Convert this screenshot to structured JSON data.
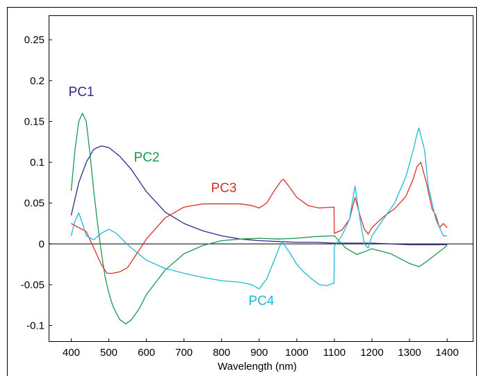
{
  "chart_data": {
    "type": "line",
    "title": "",
    "xlabel": "Wavelength (nm)",
    "ylabel": "",
    "xlim": [
      340,
      1470
    ],
    "ylim": [
      -0.12,
      0.28
    ],
    "x_ticks": [
      400,
      500,
      600,
      700,
      800,
      900,
      1000,
      1100,
      1200,
      1300,
      1400
    ],
    "y_ticks": [
      -0.1,
      -0.05,
      0,
      0.05,
      0.1,
      0.15,
      0.2,
      0.25
    ],
    "x_tick_labels": [
      "400",
      "500",
      "600",
      "700",
      "800",
      "900",
      "1000",
      "1100",
      "1200",
      "1300",
      "1400"
    ],
    "y_tick_labels": [
      "-0.1",
      "-0.05",
      "0",
      "0.05",
      "0.1",
      "0.15",
      "0.2",
      "0.25"
    ],
    "grid": false,
    "zero_line": true,
    "legend": "inline labels",
    "series": [
      {
        "name": "PC1",
        "color": "#2e2a8c",
        "label_at": [
          1,
          0.1
        ],
        "x": [
          400,
          420,
          440,
          460,
          480,
          500,
          530,
          560,
          600,
          650,
          700,
          750,
          800,
          850,
          900,
          950,
          1000,
          1050,
          1100,
          1150,
          1200,
          1250,
          1300,
          1350,
          1400
        ],
        "y": [
          0.035,
          0.075,
          0.1,
          0.116,
          0.12,
          0.118,
          0.107,
          0.091,
          0.064,
          0.039,
          0.025,
          0.016,
          0.01,
          0.006,
          0.004,
          0.003,
          0.002,
          0.002,
          0.001,
          0.001,
          0.001,
          0.0,
          -0.001,
          -0.001,
          -0.001
        ]
      },
      {
        "name": "PC2",
        "color": "#1a9850",
        "label_at": [
          0,
          0.177
        ],
        "x": [
          400,
          410,
          420,
          430,
          440,
          450,
          460,
          470,
          480,
          490,
          500,
          510,
          520,
          530,
          545,
          560,
          580,
          600,
          650,
          700,
          750,
          800,
          850,
          900,
          950,
          1000,
          1050,
          1100,
          1130,
          1160,
          1200,
          1250,
          1300,
          1325,
          1350,
          1400
        ],
        "y": [
          0.065,
          0.115,
          0.15,
          0.16,
          0.15,
          0.11,
          0.065,
          0.025,
          -0.01,
          -0.04,
          -0.06,
          -0.075,
          -0.085,
          -0.093,
          -0.098,
          -0.093,
          -0.08,
          -0.062,
          -0.032,
          -0.012,
          -0.002,
          0.004,
          0.006,
          0.007,
          0.006,
          0.007,
          0.009,
          0.01,
          -0.005,
          -0.013,
          -0.006,
          -0.012,
          -0.024,
          -0.028,
          -0.02,
          -0.002
        ]
      },
      {
        "name": "PC3",
        "color": "#d73027",
        "label_at": [
          2,
          0.062
        ],
        "x": [
          400,
          420,
          440,
          460,
          480,
          495,
          510,
          530,
          550,
          570,
          600,
          650,
          700,
          750,
          800,
          850,
          880,
          900,
          920,
          940,
          960,
          965,
          980,
          1000,
          1030,
          1060,
          1099,
          1100,
          1120,
          1140,
          1155,
          1170,
          1180,
          1190,
          1200,
          1230,
          1260,
          1290,
          1310,
          1320,
          1330,
          1345,
          1360,
          1370,
          1380,
          1390,
          1400
        ],
        "y": [
          0.025,
          0.02,
          0.015,
          -0.005,
          -0.025,
          -0.036,
          -0.036,
          -0.034,
          -0.029,
          -0.015,
          0.006,
          0.032,
          0.045,
          0.049,
          0.049,
          0.049,
          0.047,
          0.044,
          0.05,
          0.065,
          0.078,
          0.079,
          0.07,
          0.057,
          0.047,
          0.044,
          0.045,
          0.013,
          0.017,
          0.03,
          0.057,
          0.032,
          0.018,
          0.012,
          0.02,
          0.033,
          0.043,
          0.058,
          0.08,
          0.095,
          0.1,
          0.075,
          0.043,
          0.035,
          0.02,
          0.025,
          0.02
        ]
      },
      {
        "name": "PC4",
        "color": "#1fb8d8",
        "label_at": [
          3,
          -0.072
        ],
        "x": [
          400,
          410,
          420,
          430,
          440,
          460,
          480,
          500,
          520,
          550,
          600,
          650,
          700,
          750,
          800,
          850,
          880,
          900,
          920,
          940,
          960,
          965,
          980,
          1000,
          1020,
          1040,
          1060,
          1080,
          1099,
          1100,
          1120,
          1140,
          1155,
          1170,
          1180,
          1190,
          1200,
          1230,
          1260,
          1290,
          1310,
          1320,
          1325,
          1340,
          1350,
          1370,
          1390,
          1400
        ],
        "y": [
          0.01,
          0.028,
          0.038,
          0.025,
          0.01,
          0.005,
          0.013,
          0.018,
          0.013,
          -0.001,
          -0.02,
          -0.03,
          -0.036,
          -0.041,
          -0.045,
          -0.047,
          -0.05,
          -0.055,
          -0.043,
          -0.02,
          0.003,
          0.0,
          -0.01,
          -0.025,
          -0.035,
          -0.043,
          -0.05,
          -0.051,
          -0.048,
          -0.003,
          0.01,
          0.03,
          0.071,
          0.025,
          0.0,
          -0.005,
          0.01,
          0.03,
          0.05,
          0.082,
          0.115,
          0.135,
          0.142,
          0.115,
          0.07,
          0.03,
          0.01,
          0.01
        ]
      }
    ],
    "series_labels": [
      "PC1",
      "PC2",
      "PC3",
      "PC4"
    ]
  }
}
